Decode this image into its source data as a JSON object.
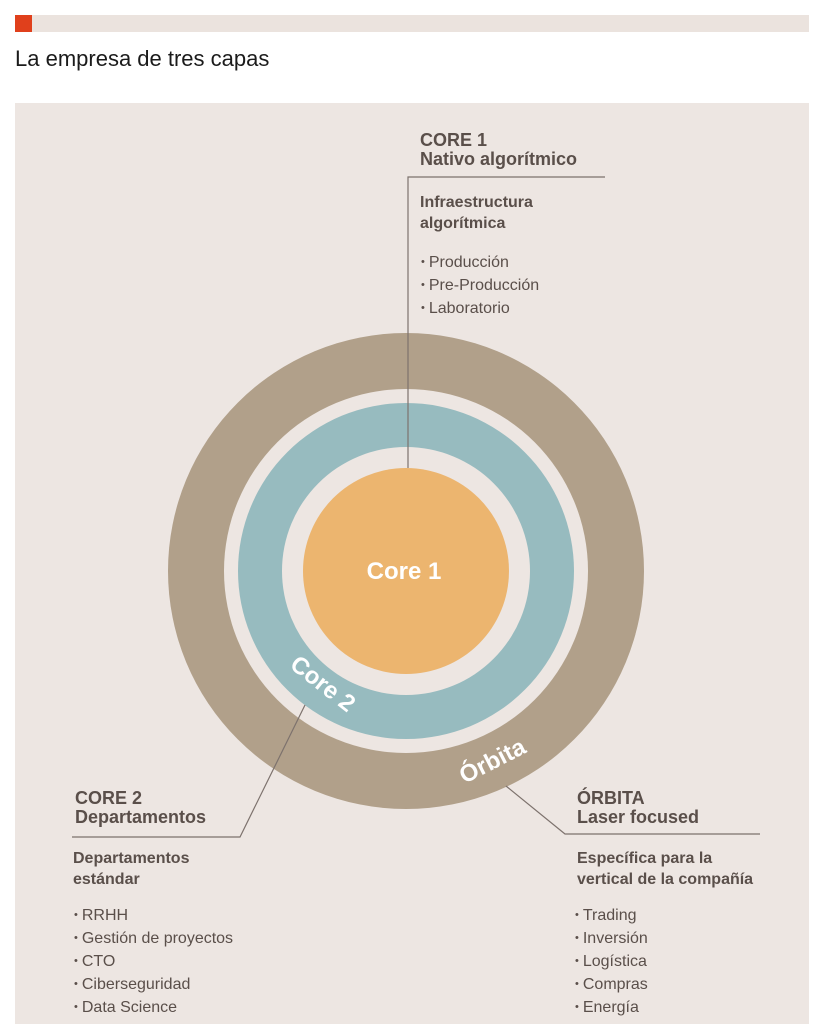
{
  "page": {
    "title": "La empresa de tres capas",
    "accent_color": "#e0401c"
  },
  "diagram": {
    "colors": {
      "orbita_ring": "#b1a08a",
      "core2_ring": "#97bbbf",
      "core1_disc": "#ecb56f",
      "background": "#ede6e2",
      "leader_line": "#7d726d"
    },
    "circle_labels": {
      "core1": "Core 1",
      "core2": "Core 2",
      "orbita": "Órbita"
    },
    "core1": {
      "heading": [
        "CORE 1",
        "Nativo algorítmico"
      ],
      "subheading": [
        "Infraestructura",
        "algorítmica"
      ],
      "items": [
        "Producción",
        "Pre-Producción",
        "Laboratorio"
      ]
    },
    "core2": {
      "heading": [
        "CORE 2",
        "Departamentos"
      ],
      "subheading": [
        "Departamentos",
        "estándar"
      ],
      "items": [
        "RRHH",
        "Gestión de proyectos",
        "CTO",
        "Ciberseguridad",
        "Data Science"
      ]
    },
    "orbita": {
      "heading": [
        "ÓRBITA",
        "Laser focused"
      ],
      "subheading": [
        "Específica para la",
        "vertical de la compañía"
      ],
      "items": [
        "Trading",
        "Inversión",
        "Logística",
        "Compras",
        "Energía"
      ]
    }
  }
}
